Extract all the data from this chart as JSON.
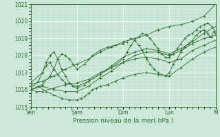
{
  "title": "",
  "xlabel": "Pression niveau de la mer( hPa )",
  "bg_color": "#cce8d8",
  "grid_color_major": "#ffffff",
  "grid_color_minor": "#b8d8c8",
  "line_color": "#2d6b2d",
  "ylim": [
    1015.0,
    1021.0
  ],
  "yticks": [
    1015,
    1016,
    1017,
    1018,
    1019,
    1020,
    1021
  ],
  "day_labels": [
    "Ven",
    "Sam",
    "Dim",
    "Lun",
    "M"
  ],
  "day_positions": [
    0,
    48,
    96,
    144,
    192
  ],
  "total_hours": 192,
  "series": [
    [
      0,
      1016.3,
      12,
      1016.5,
      24,
      1016.8,
      36,
      1017.2,
      48,
      1017.5,
      60,
      1017.8,
      72,
      1018.2,
      84,
      1018.5,
      96,
      1018.8,
      108,
      1019.0,
      120,
      1019.2,
      132,
      1019.5,
      144,
      1019.7,
      156,
      1019.8,
      168,
      1020.0,
      180,
      1020.3,
      192,
      1021.0
    ],
    [
      0,
      1016.0,
      12,
      1016.3,
      20,
      1016.8,
      24,
      1017.2,
      28,
      1017.8,
      32,
      1018.1,
      36,
      1018.0,
      40,
      1017.8,
      44,
      1017.5,
      48,
      1017.2,
      56,
      1017.5,
      64,
      1018.0,
      72,
      1018.3,
      80,
      1018.5,
      88,
      1018.6,
      96,
      1018.7,
      100,
      1018.8,
      104,
      1019.0,
      108,
      1018.9,
      112,
      1018.6,
      116,
      1018.3,
      120,
      1017.8,
      124,
      1017.5,
      128,
      1017.2,
      132,
      1017.0,
      136,
      1016.9,
      140,
      1016.8,
      144,
      1017.0,
      148,
      1017.5,
      152,
      1017.8,
      156,
      1018.2,
      160,
      1018.5,
      164,
      1018.7,
      168,
      1018.9,
      172,
      1019.2,
      176,
      1019.4,
      180,
      1019.5,
      184,
      1019.3,
      186,
      1019.1,
      188,
      1019.1,
      190,
      1019.4,
      192,
      1019.3
    ],
    [
      0,
      1016.0,
      8,
      1016.2,
      16,
      1015.9,
      24,
      1015.7,
      32,
      1015.5,
      40,
      1015.4,
      48,
      1015.4,
      52,
      1015.5,
      56,
      1015.6,
      60,
      1015.8,
      64,
      1016.0,
      68,
      1016.1,
      72,
      1016.2,
      80,
      1016.3,
      88,
      1016.5,
      96,
      1016.7,
      108,
      1016.9,
      120,
      1017.0,
      132,
      1016.9,
      144,
      1016.8,
      156,
      1017.3,
      168,
      1017.8,
      180,
      1018.2,
      192,
      1018.5
    ],
    [
      0,
      1016.1,
      8,
      1016.5,
      12,
      1017.0,
      16,
      1017.6,
      20,
      1018.0,
      24,
      1018.2,
      28,
      1017.8,
      32,
      1017.2,
      36,
      1016.8,
      40,
      1016.4,
      44,
      1016.2,
      48,
      1016.1,
      56,
      1016.3,
      60,
      1016.5,
      72,
      1016.9,
      84,
      1017.3,
      96,
      1017.8,
      100,
      1018.2,
      104,
      1018.6,
      108,
      1018.9,
      112,
      1019.1,
      116,
      1019.3,
      120,
      1019.2,
      124,
      1019.0,
      128,
      1018.7,
      132,
      1018.4,
      136,
      1018.1,
      140,
      1017.9,
      144,
      1017.9,
      148,
      1018.1,
      152,
      1018.4,
      156,
      1018.7,
      160,
      1019.0,
      164,
      1019.2,
      168,
      1019.3,
      172,
      1019.5,
      176,
      1019.7,
      180,
      1019.8,
      184,
      1019.9,
      188,
      1019.7,
      192,
      1019.4
    ],
    [
      0,
      1016.0,
      12,
      1016.2,
      24,
      1016.0,
      36,
      1015.9,
      48,
      1015.9,
      60,
      1016.2,
      72,
      1016.7,
      84,
      1017.1,
      96,
      1017.6,
      108,
      1018.0,
      120,
      1018.2,
      132,
      1018.2,
      144,
      1018.0,
      156,
      1018.3,
      168,
      1018.7,
      180,
      1019.0,
      192,
      1019.2
    ],
    [
      0,
      1016.4,
      12,
      1017.0,
      16,
      1017.4,
      20,
      1017.6,
      24,
      1017.2,
      28,
      1016.9,
      32,
      1016.6,
      36,
      1016.4,
      48,
      1016.2,
      60,
      1016.5,
      72,
      1016.9,
      84,
      1017.4,
      96,
      1017.9,
      108,
      1018.2,
      120,
      1018.4,
      132,
      1018.3,
      144,
      1018.1,
      156,
      1018.4,
      168,
      1018.8,
      180,
      1019.3,
      192,
      1019.7
    ],
    [
      0,
      1016.0,
      6,
      1015.9,
      12,
      1015.9,
      24,
      1016.1,
      36,
      1016.3,
      48,
      1016.4,
      60,
      1016.6,
      72,
      1017.0,
      84,
      1017.3,
      96,
      1017.6,
      108,
      1017.8,
      120,
      1017.9,
      132,
      1017.8,
      144,
      1017.6,
      156,
      1017.8,
      168,
      1018.3,
      180,
      1018.6,
      192,
      1018.9
    ]
  ]
}
